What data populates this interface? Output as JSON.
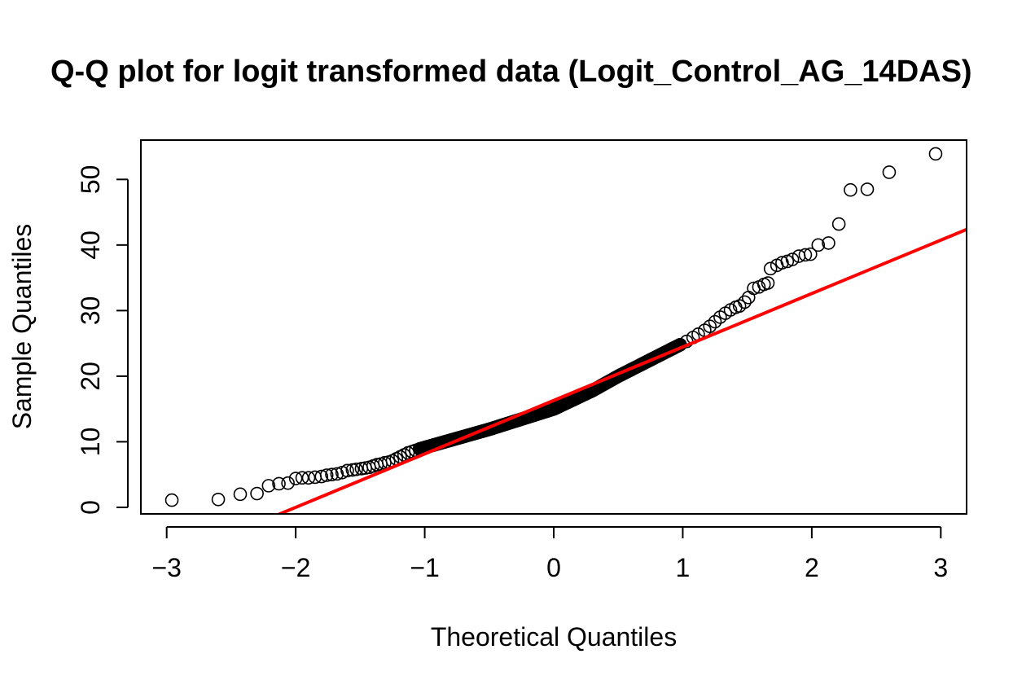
{
  "chart_data": {
    "type": "scatter",
    "title": "Q-Q plot for logit transformed data (Logit_Control_AG_14DAS)",
    "xlabel": "Theoretical Quantiles",
    "ylabel": "Sample Quantiles",
    "xlim": [
      -3.2,
      3.2
    ],
    "ylim": [
      -1.0,
      56.0
    ],
    "x_ticks": [
      -3,
      -2,
      -1,
      0,
      1,
      2,
      3
    ],
    "x_tick_labels": [
      "−3",
      "−2",
      "−1",
      "0",
      "1",
      "2",
      "3"
    ],
    "y_ticks": [
      0,
      10,
      20,
      30,
      40,
      50
    ],
    "y_tick_labels": [
      "0",
      "10",
      "20",
      "30",
      "40",
      "50"
    ],
    "grid": false,
    "legend": "none",
    "point_color": "#000000",
    "line_color": "#ff0000",
    "reference_line": {
      "intercept": 16.3,
      "slope": 8.15
    },
    "series": [
      {
        "tail_points": [
          [
            -2.96,
            1.1
          ],
          [
            -2.6,
            1.2
          ],
          [
            -2.43,
            2.0
          ],
          [
            -2.3,
            2.1
          ],
          [
            -2.21,
            3.3
          ],
          [
            -2.13,
            3.6
          ],
          [
            -2.06,
            3.7
          ],
          [
            -2.0,
            4.4
          ],
          [
            -1.95,
            4.5
          ],
          [
            -1.9,
            4.5
          ],
          [
            -1.85,
            4.6
          ],
          [
            -1.8,
            4.7
          ],
          [
            -1.76,
            4.9
          ],
          [
            -1.72,
            5.0
          ],
          [
            -1.68,
            5.1
          ],
          [
            -1.64,
            5.3
          ],
          [
            -1.6,
            5.6
          ],
          [
            -1.56,
            5.7
          ],
          [
            -1.53,
            5.8
          ],
          [
            -1.49,
            5.9
          ],
          [
            -1.46,
            6.0
          ],
          [
            -1.43,
            6.1
          ],
          [
            -1.4,
            6.3
          ],
          [
            -1.37,
            6.5
          ],
          [
            -1.34,
            6.6
          ],
          [
            -1.31,
            6.8
          ],
          [
            -1.28,
            6.9
          ],
          [
            -1.25,
            7.1
          ],
          [
            -1.22,
            7.4
          ],
          [
            -1.19,
            7.7
          ],
          [
            -1.16,
            8.0
          ],
          [
            -1.13,
            8.3
          ],
          [
            -1.1,
            8.5
          ],
          [
            -1.07,
            8.7
          ],
          [
            -1.04,
            8.9
          ],
          [
            0.98,
            24.8
          ],
          [
            1.03,
            25.3
          ],
          [
            1.08,
            25.9
          ],
          [
            1.12,
            26.4
          ],
          [
            1.17,
            27.0
          ],
          [
            1.21,
            27.6
          ],
          [
            1.25,
            28.3
          ],
          [
            1.29,
            29.0
          ],
          [
            1.33,
            29.6
          ],
          [
            1.37,
            30.1
          ],
          [
            1.41,
            30.5
          ],
          [
            1.44,
            30.7
          ],
          [
            1.48,
            31.3
          ],
          [
            1.51,
            32.0
          ],
          [
            1.55,
            33.4
          ],
          [
            1.59,
            33.6
          ],
          [
            1.63,
            34.0
          ],
          [
            1.66,
            34.2
          ],
          [
            1.68,
            36.4
          ],
          [
            1.73,
            36.9
          ],
          [
            1.77,
            37.3
          ],
          [
            1.81,
            37.5
          ],
          [
            1.85,
            37.8
          ],
          [
            1.9,
            38.3
          ],
          [
            1.95,
            38.5
          ],
          [
            1.99,
            38.6
          ],
          [
            2.05,
            40.0
          ],
          [
            2.13,
            40.3
          ],
          [
            2.21,
            43.2
          ],
          [
            2.3,
            48.4
          ],
          [
            2.43,
            48.5
          ],
          [
            2.6,
            51.1
          ],
          [
            2.96,
            53.9
          ]
        ],
        "body_trend_knots": [
          [
            -1.04,
            8.9
          ],
          [
            -0.5,
            11.9
          ],
          [
            0.0,
            15.0
          ],
          [
            0.3,
            17.8
          ],
          [
            0.5,
            20.0
          ],
          [
            0.8,
            23.0
          ],
          [
            0.98,
            24.8
          ]
        ],
        "body_point_count": 320
      }
    ]
  }
}
